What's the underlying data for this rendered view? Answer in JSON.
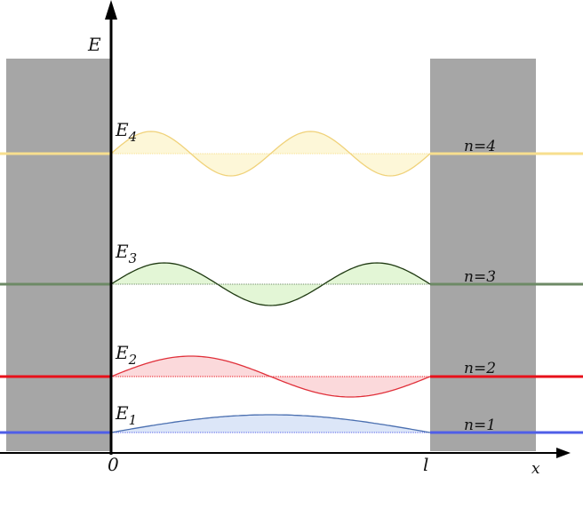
{
  "axes": {
    "y_label": "E",
    "x_label": "x",
    "origin": "0",
    "box_end": "l"
  },
  "levels": [
    {
      "symbol": "E",
      "subscript": "1",
      "state": "n=1"
    },
    {
      "symbol": "E",
      "subscript": "2",
      "state": "n=2"
    },
    {
      "symbol": "E",
      "subscript": "3",
      "state": "n=3"
    },
    {
      "symbol": "E",
      "subscript": "4",
      "state": "n=4"
    }
  ]
}
